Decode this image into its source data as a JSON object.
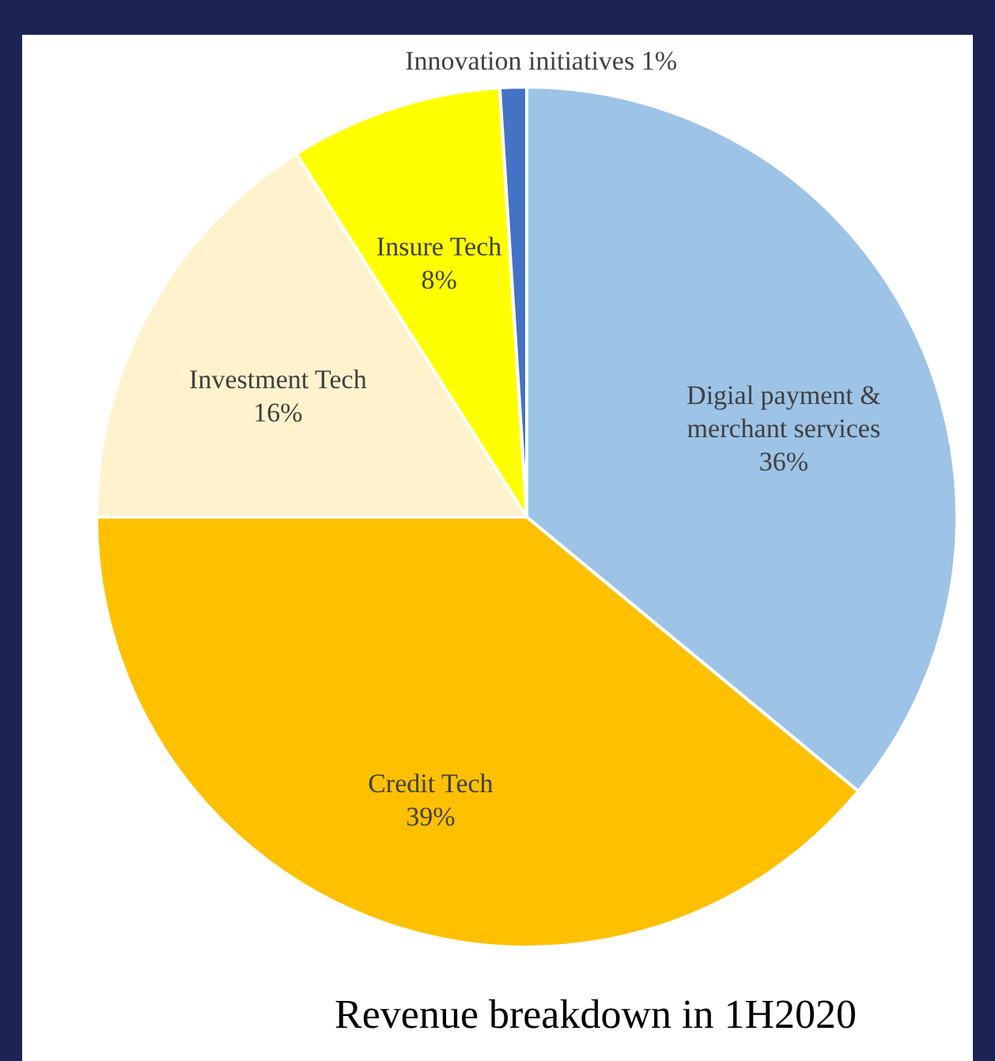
{
  "chart_data": {
    "type": "pie",
    "title": "Revenue breakdown in 1H2020",
    "categories": [
      "Digial payment & merchant services",
      "Credit Tech",
      "Investment Tech",
      "Insure Tech",
      "Innovation initiatives"
    ],
    "values": [
      36,
      39,
      16,
      8,
      1
    ],
    "value_labels": [
      "36%",
      "39%",
      "16%",
      "8%",
      "1%"
    ],
    "colors": [
      "#9dc3e6",
      "#ffc000",
      "#fff2cc",
      "#ffff00",
      "#4472c4"
    ]
  }
}
